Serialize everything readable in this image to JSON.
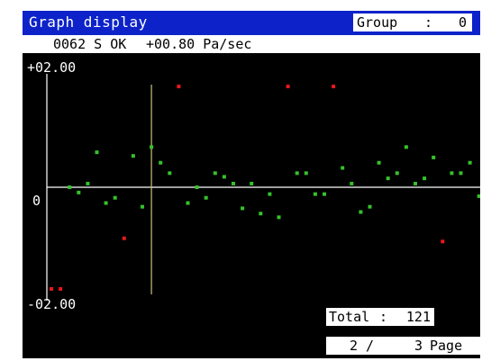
{
  "title": "Graph display",
  "group": {
    "label": "Group",
    "separator": ":",
    "value": "0"
  },
  "status": {
    "text": "0062 S OK",
    "rate": "+00.80 Pa/sec"
  },
  "y_axis": {
    "max_label": "+02.00",
    "zero_label": "0",
    "min_label": "-02.00"
  },
  "total": {
    "label": "Total",
    "separator": ":",
    "value": "121"
  },
  "page": {
    "current": "2",
    "slash": "/",
    "total": "3",
    "word": "Page"
  },
  "colors": {
    "title_bar": "#0d23c9",
    "normal_point": "#35c22a",
    "alarm_point": "#e81818",
    "cursor": "#c8c27a",
    "axis": "#ffffff"
  },
  "chart_data": {
    "type": "scatter",
    "ylim": [
      -2.0,
      2.0
    ],
    "cursor_index": 11,
    "points": [
      {
        "x": 0,
        "y": -1.93,
        "status": "alarm"
      },
      {
        "x": 1,
        "y": -1.93,
        "status": "alarm"
      },
      {
        "x": 2,
        "y": 0.0,
        "status": "ok"
      },
      {
        "x": 3,
        "y": -0.1,
        "status": "ok"
      },
      {
        "x": 4,
        "y": 0.07,
        "status": "ok"
      },
      {
        "x": 5,
        "y": 0.67,
        "status": "ok"
      },
      {
        "x": 6,
        "y": -0.3,
        "status": "ok"
      },
      {
        "x": 7,
        "y": -0.2,
        "status": "ok"
      },
      {
        "x": 8,
        "y": -0.97,
        "status": "alarm"
      },
      {
        "x": 9,
        "y": 0.6,
        "status": "ok"
      },
      {
        "x": 10,
        "y": -0.37,
        "status": "ok"
      },
      {
        "x": 11,
        "y": 0.77,
        "status": "ok"
      },
      {
        "x": 12,
        "y": 0.47,
        "status": "ok"
      },
      {
        "x": 13,
        "y": 0.27,
        "status": "ok"
      },
      {
        "x": 14,
        "y": 1.93,
        "status": "alarm"
      },
      {
        "x": 15,
        "y": -0.3,
        "status": "ok"
      },
      {
        "x": 16,
        "y": 0.0,
        "status": "ok"
      },
      {
        "x": 17,
        "y": -0.2,
        "status": "ok"
      },
      {
        "x": 18,
        "y": 0.27,
        "status": "ok"
      },
      {
        "x": 19,
        "y": 0.2,
        "status": "ok"
      },
      {
        "x": 20,
        "y": 0.07,
        "status": "ok"
      },
      {
        "x": 21,
        "y": -0.4,
        "status": "ok"
      },
      {
        "x": 22,
        "y": 0.07,
        "status": "ok"
      },
      {
        "x": 23,
        "y": -0.5,
        "status": "ok"
      },
      {
        "x": 24,
        "y": -0.13,
        "status": "ok"
      },
      {
        "x": 25,
        "y": -0.57,
        "status": "ok"
      },
      {
        "x": 26,
        "y": 1.93,
        "status": "alarm"
      },
      {
        "x": 27,
        "y": 0.27,
        "status": "ok"
      },
      {
        "x": 28,
        "y": 0.27,
        "status": "ok"
      },
      {
        "x": 29,
        "y": -0.13,
        "status": "ok"
      },
      {
        "x": 30,
        "y": -0.13,
        "status": "ok"
      },
      {
        "x": 31,
        "y": 1.93,
        "status": "alarm"
      },
      {
        "x": 32,
        "y": 0.37,
        "status": "ok"
      },
      {
        "x": 33,
        "y": 0.07,
        "status": "ok"
      },
      {
        "x": 34,
        "y": -0.47,
        "status": "ok"
      },
      {
        "x": 35,
        "y": -0.37,
        "status": "ok"
      },
      {
        "x": 36,
        "y": 0.47,
        "status": "ok"
      },
      {
        "x": 37,
        "y": 0.17,
        "status": "ok"
      },
      {
        "x": 38,
        "y": 0.27,
        "status": "ok"
      },
      {
        "x": 39,
        "y": 0.77,
        "status": "ok"
      },
      {
        "x": 40,
        "y": 0.07,
        "status": "ok"
      },
      {
        "x": 41,
        "y": 0.17,
        "status": "ok"
      },
      {
        "x": 42,
        "y": 0.57,
        "status": "ok"
      },
      {
        "x": 43,
        "y": -1.03,
        "status": "alarm"
      },
      {
        "x": 44,
        "y": 0.27,
        "status": "ok"
      },
      {
        "x": 45,
        "y": 0.27,
        "status": "ok"
      },
      {
        "x": 46,
        "y": 0.47,
        "status": "ok"
      },
      {
        "x": 47,
        "y": -0.17,
        "status": "ok"
      }
    ]
  }
}
